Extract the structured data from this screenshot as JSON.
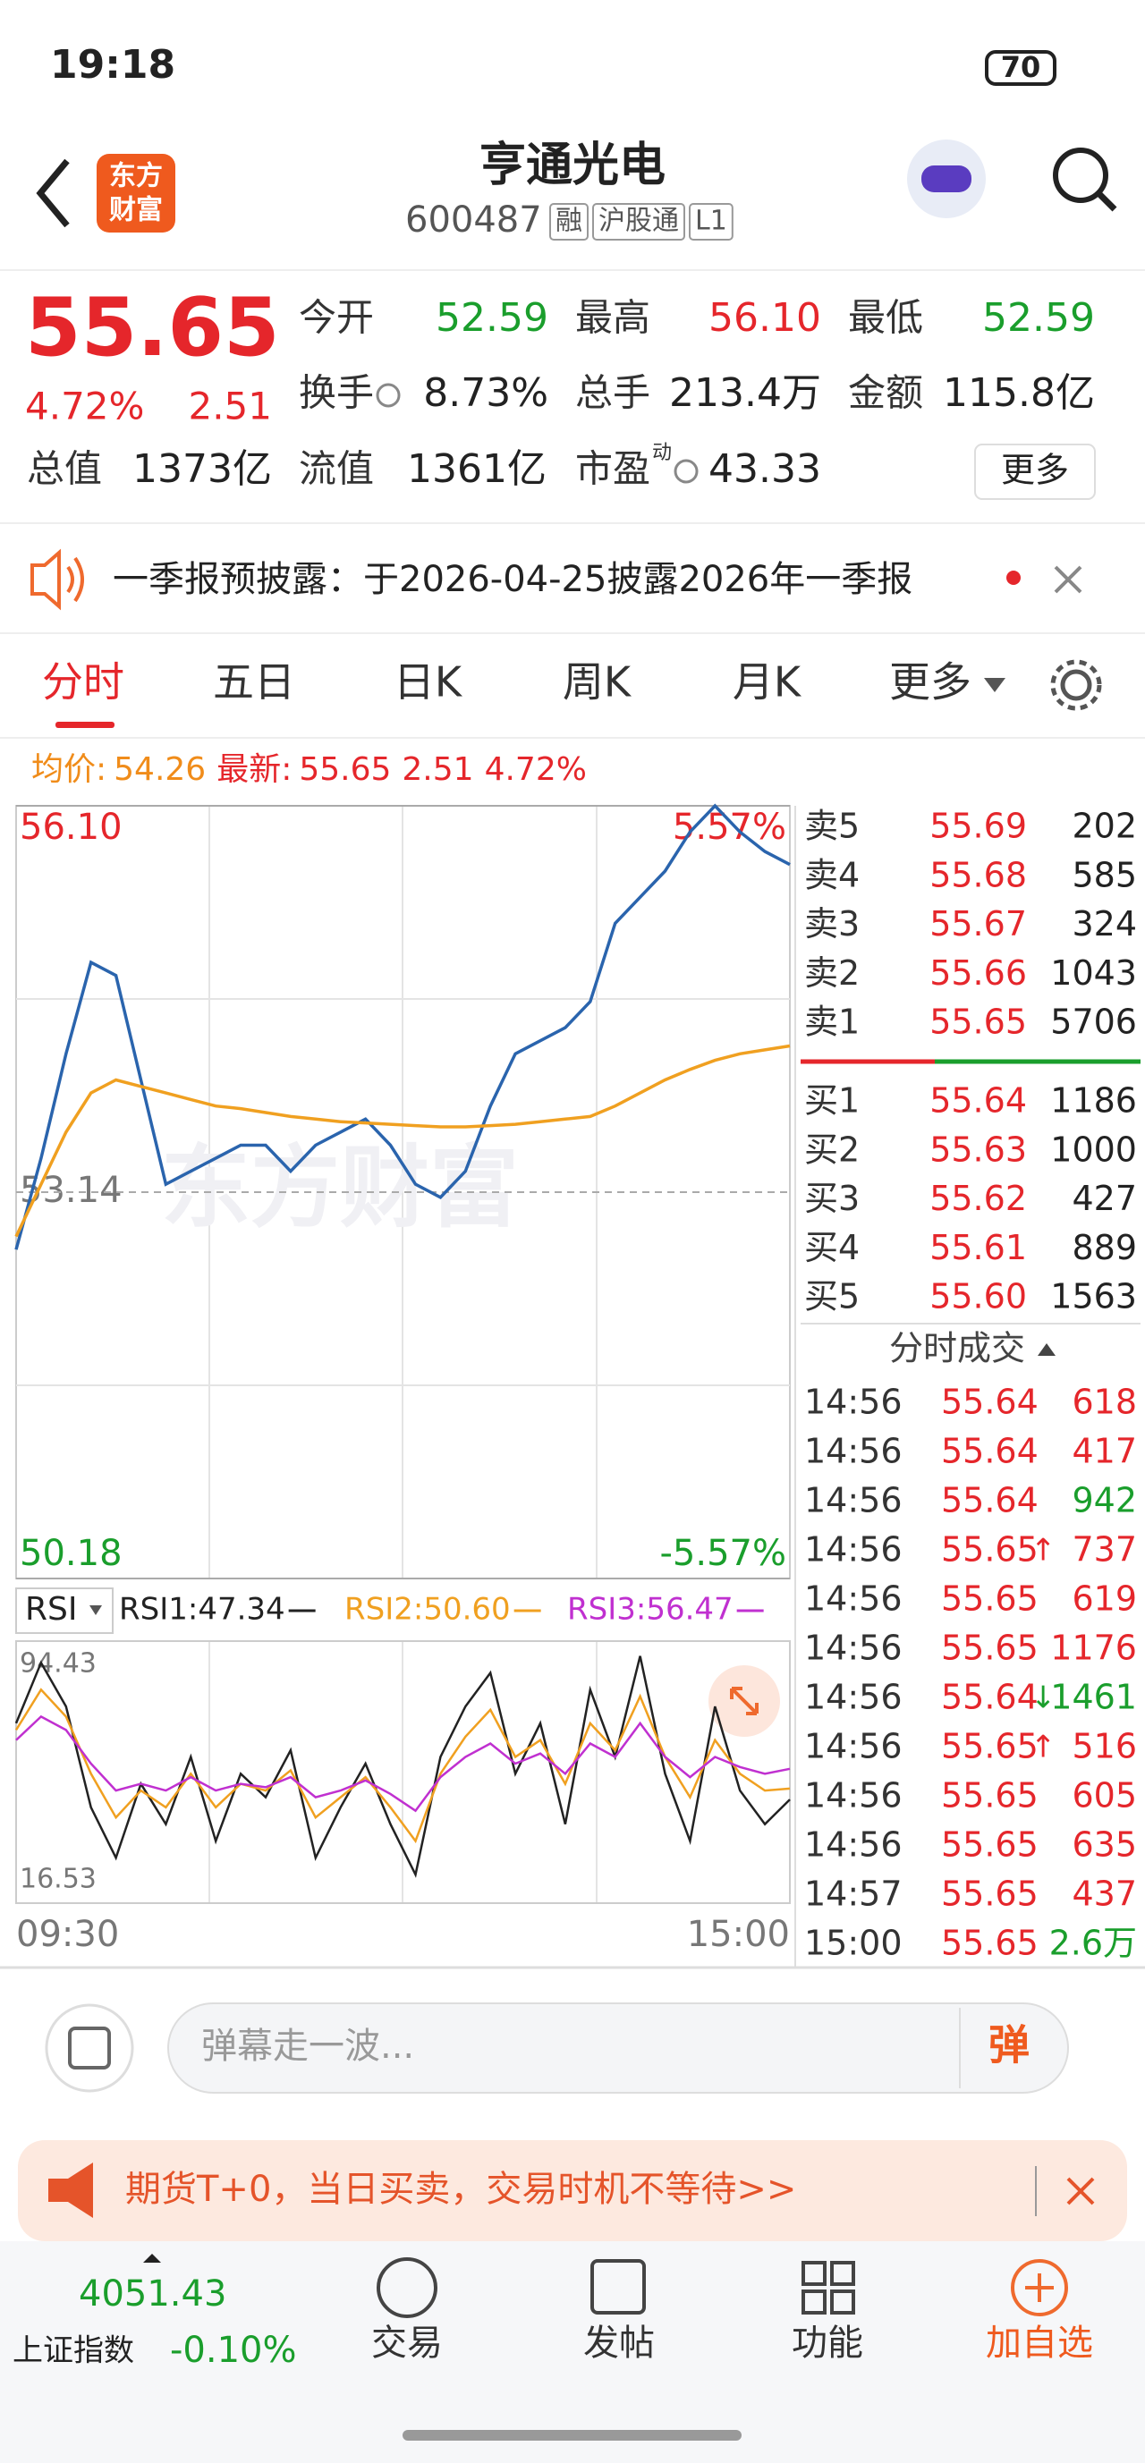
{
  "status_bar": {
    "time": "19:18",
    "battery": "70"
  },
  "header": {
    "logo": [
      "东方",
      "财富"
    ],
    "title": "亨通光电",
    "code": "600487",
    "tags": [
      "融",
      "沪股通",
      "L1"
    ]
  },
  "quote": {
    "price": "55.65",
    "change_pct": "4.72%",
    "change": "2.51",
    "fields": [
      {
        "label": "今开",
        "value": "52.59",
        "tone": "down"
      },
      {
        "label": "最高",
        "value": "56.10",
        "tone": "up"
      },
      {
        "label": "最低",
        "value": "52.59",
        "tone": "down"
      },
      {
        "label": "换手",
        "value": "8.73%",
        "tone": "flat",
        "info": true
      },
      {
        "label": "总手",
        "value": "213.4万",
        "tone": "flat"
      },
      {
        "label": "金额",
        "value": "115.8亿",
        "tone": "flat"
      },
      {
        "label": "总值",
        "value": "1373亿",
        "tone": "flat"
      },
      {
        "label": "流值",
        "value": "1361亿",
        "tone": "flat"
      },
      {
        "label": "市盈",
        "sup": "动",
        "value": "43.33",
        "tone": "flat",
        "info": true
      }
    ],
    "more": "更多"
  },
  "notice": "一季报预披露：于2026-04-25披露2026年一季报",
  "tabs": [
    "分时",
    "五日",
    "日K",
    "周K",
    "月K",
    "更多"
  ],
  "info_line": {
    "avg_label": "均价:",
    "avg": "54.26",
    "last_label": "最新:",
    "last": "55.65",
    "change": "2.51",
    "pct": "4.72%"
  },
  "watermark": "东方财富",
  "chart_data": [
    {
      "type": "line",
      "ylim": [
        50.18,
        56.1
      ],
      "yticks": [
        {
          "value": 56.1,
          "label": "56.10"
        },
        53.14,
        50.18
      ],
      "y2lim": [
        -5.57,
        5.57
      ],
      "y2ticks": [
        {
          "value": 5.57,
          "label": "5.57%"
        },
        {
          "value": -5.57,
          "label": "-5.57%"
        }
      ],
      "grid": true,
      "series": [
        {
          "name": "price",
          "color": "#2a64ad",
          "values": [
            52.7,
            53.4,
            54.2,
            54.9,
            54.8,
            54.0,
            53.2,
            53.3,
            53.4,
            53.5,
            53.5,
            53.3,
            53.5,
            53.6,
            53.7,
            53.5,
            53.2,
            53.1,
            53.3,
            53.8,
            54.2,
            54.3,
            54.4,
            54.6,
            55.2,
            55.4,
            55.6,
            55.9,
            56.1,
            55.9,
            55.75,
            55.65
          ]
        },
        {
          "name": "avg",
          "color": "#f0a020",
          "values": [
            52.8,
            53.2,
            53.6,
            53.9,
            54.0,
            53.95,
            53.9,
            53.85,
            53.8,
            53.78,
            53.75,
            53.72,
            53.7,
            53.68,
            53.67,
            53.66,
            53.65,
            53.64,
            53.64,
            53.65,
            53.66,
            53.68,
            53.7,
            53.72,
            53.8,
            53.9,
            54.0,
            54.08,
            54.15,
            54.2,
            54.23,
            54.26
          ]
        }
      ]
    },
    {
      "type": "line",
      "selector": "RSI",
      "ylim": [
        16.53,
        94.43
      ],
      "yticks": [
        94.43,
        16.53
      ],
      "categories": [
        "09:30",
        null,
        null,
        null,
        null,
        null,
        null,
        null,
        null,
        null,
        null,
        null,
        null,
        null,
        null,
        null,
        null,
        null,
        null,
        null,
        null,
        null,
        null,
        null,
        null,
        null,
        null,
        null,
        null,
        null,
        null,
        "15:00"
      ],
      "series": [
        {
          "name": "RSI1:47.34",
          "color": "#222222",
          "values": [
            70,
            88,
            75,
            45,
            30,
            52,
            40,
            60,
            35,
            55,
            48,
            62,
            30,
            45,
            58,
            40,
            25,
            60,
            75,
            85,
            55,
            70,
            40,
            80,
            60,
            90,
            55,
            35,
            75,
            50,
            40,
            47.34
          ]
        },
        {
          "name": "RSI2:50.60",
          "color": "#f0a020",
          "values": [
            68,
            80,
            72,
            55,
            42,
            50,
            45,
            55,
            45,
            52,
            50,
            56,
            42,
            48,
            54,
            45,
            35,
            55,
            66,
            74,
            60,
            65,
            52,
            70,
            62,
            78,
            60,
            48,
            65,
            55,
            50,
            50.6
          ]
        },
        {
          "name": "RSI3:56.47",
          "color": "#c030d0",
          "values": [
            65,
            72,
            68,
            58,
            50,
            52,
            50,
            54,
            50,
            52,
            51,
            54,
            48,
            50,
            53,
            49,
            44,
            54,
            60,
            64,
            58,
            61,
            55,
            64,
            60,
            70,
            60,
            54,
            60,
            57,
            55,
            56.47
          ]
        }
      ]
    }
  ],
  "order_book": {
    "asks": [
      {
        "label": "卖5",
        "price": "55.69",
        "vol": "202"
      },
      {
        "label": "卖4",
        "price": "55.68",
        "vol": "585"
      },
      {
        "label": "卖3",
        "price": "55.67",
        "vol": "324"
      },
      {
        "label": "卖2",
        "price": "55.66",
        "vol": "1043"
      },
      {
        "label": "卖1",
        "price": "55.65",
        "vol": "5706"
      }
    ],
    "bids": [
      {
        "label": "买1",
        "price": "55.64",
        "vol": "1186"
      },
      {
        "label": "买2",
        "price": "55.63",
        "vol": "1000"
      },
      {
        "label": "买3",
        "price": "55.62",
        "vol": "427"
      },
      {
        "label": "买4",
        "price": "55.61",
        "vol": "889"
      },
      {
        "label": "买5",
        "price": "55.60",
        "vol": "1563"
      }
    ]
  },
  "trades": {
    "title": "分时成交",
    "rows": [
      {
        "time": "14:56",
        "price": "55.64",
        "vol": "618",
        "side": "buy"
      },
      {
        "time": "14:56",
        "price": "55.64",
        "vol": "417",
        "side": "buy"
      },
      {
        "time": "14:56",
        "price": "55.64",
        "vol": "942",
        "side": "sell"
      },
      {
        "time": "14:56",
        "price": "55.65",
        "arrow": "↑",
        "vol": "737",
        "side": "buy"
      },
      {
        "time": "14:56",
        "price": "55.65",
        "vol": "619",
        "side": "buy"
      },
      {
        "time": "14:56",
        "price": "55.65",
        "vol": "1176",
        "side": "buy"
      },
      {
        "time": "14:56",
        "price": "55.64",
        "arrow": "↓",
        "vol": "1461",
        "side": "sell"
      },
      {
        "time": "14:56",
        "price": "55.65",
        "arrow": "↑",
        "vol": "516",
        "side": "buy"
      },
      {
        "time": "14:56",
        "price": "55.65",
        "vol": "605",
        "side": "buy"
      },
      {
        "time": "14:56",
        "price": "55.65",
        "vol": "635",
        "side": "buy"
      },
      {
        "time": "14:57",
        "price": "55.65",
        "vol": "437",
        "side": "buy"
      },
      {
        "time": "15:00",
        "price": "55.65",
        "vol": "2.6万",
        "side": "sell"
      }
    ]
  },
  "comment": {
    "placeholder": "弹幕走一波...",
    "button": "弹"
  },
  "ad": "期货T+0，当日买卖，交易时机不等待>>",
  "bottom_nav": {
    "index_value": "4051.43",
    "index_name": "上证指数",
    "index_change": "-0.10%",
    "items": [
      "交易",
      "发帖",
      "功能",
      "加自选"
    ]
  }
}
